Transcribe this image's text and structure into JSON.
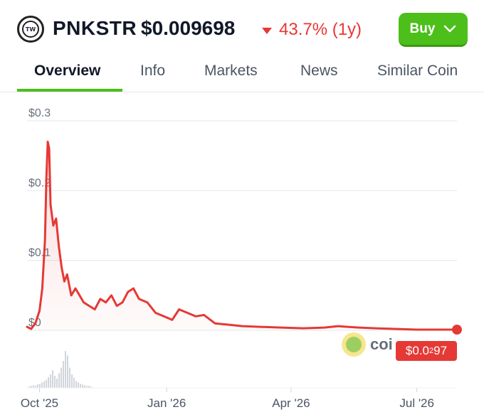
{
  "header": {
    "logo_text": "TW",
    "symbol": "PNKSTR",
    "price": "$0.009698",
    "change": "43.7% (1y)",
    "buy_label": "Buy"
  },
  "tabs": [
    {
      "label": "Overview",
      "active": true
    },
    {
      "label": "Info"
    },
    {
      "label": "Markets"
    },
    {
      "label": "News"
    },
    {
      "label": "Similar Coin"
    }
  ],
  "colors": {
    "accent": "#4cbf1a",
    "negative": "#e53935"
  },
  "watermark_text": "coi",
  "chart_data": {
    "type": "line",
    "y_tick_labels": [
      "$0.3",
      "$0.2",
      "$0.1",
      "$0"
    ],
    "x_tick_labels": [
      "Oct '25",
      "Jan '26",
      "Apr '26",
      "Jul '26"
    ],
    "ylim": [
      0,
      0.3
    ],
    "grid": true,
    "current_label": "$0.0",
    "current_label_sub": "2",
    "current_label_tail": "97",
    "series": [
      {
        "color": "#e53935",
        "x": [
          "2025-09-22",
          "2025-09-25",
          "2025-09-28",
          "2025-10-01",
          "2025-10-03",
          "2025-10-05",
          "2025-10-06",
          "2025-10-07",
          "2025-10-08",
          "2025-10-09",
          "2025-10-11",
          "2025-10-13",
          "2025-10-15",
          "2025-10-17",
          "2025-10-19",
          "2025-10-21",
          "2025-10-24",
          "2025-10-27",
          "2025-10-30",
          "2025-11-02",
          "2025-11-06",
          "2025-11-10",
          "2025-11-14",
          "2025-11-18",
          "2025-11-22",
          "2025-11-26",
          "2025-11-30",
          "2025-12-04",
          "2025-12-08",
          "2025-12-12",
          "2025-12-18",
          "2025-12-24",
          "2025-12-30",
          "2026-01-05",
          "2026-01-10",
          "2026-01-16",
          "2026-01-22",
          "2026-01-28",
          "2026-02-05",
          "2026-02-15",
          "2026-02-25",
          "2026-03-10",
          "2026-03-25",
          "2026-04-10",
          "2026-04-25",
          "2026-05-05",
          "2026-05-12",
          "2026-05-20",
          "2026-06-01",
          "2026-06-15",
          "2026-07-01",
          "2026-07-15",
          "2026-07-30"
        ],
        "values": [
          0.005,
          0.002,
          0.01,
          0.028,
          0.06,
          0.13,
          0.22,
          0.27,
          0.26,
          0.18,
          0.15,
          0.16,
          0.12,
          0.09,
          0.07,
          0.08,
          0.05,
          0.06,
          0.05,
          0.04,
          0.035,
          0.03,
          0.045,
          0.04,
          0.05,
          0.035,
          0.04,
          0.055,
          0.06,
          0.045,
          0.04,
          0.025,
          0.02,
          0.015,
          0.03,
          0.025,
          0.02,
          0.022,
          0.01,
          0.008,
          0.006,
          0.005,
          0.004,
          0.003,
          0.004,
          0.006,
          0.005,
          0.004,
          0.003,
          0.002,
          0.001,
          0.001,
          0.001
        ]
      }
    ],
    "volume": [
      2,
      3,
      4,
      3,
      5,
      6,
      8,
      10,
      12,
      16,
      20,
      26,
      18,
      14,
      22,
      30,
      40,
      55,
      48,
      30,
      20,
      15,
      10,
      8,
      6,
      5,
      4,
      3,
      3,
      2
    ]
  }
}
